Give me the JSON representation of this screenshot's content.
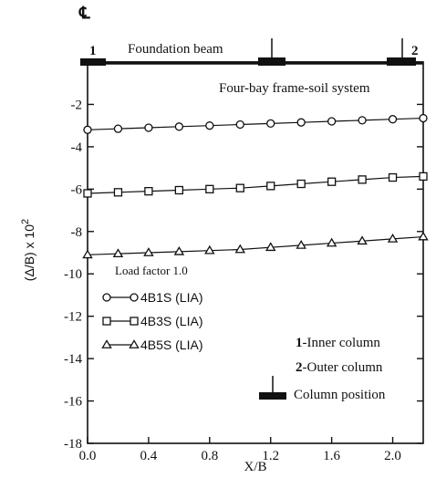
{
  "chart_data": {
    "type": "line",
    "xlabel": "X/B",
    "ylabel": "(Δ/B) x 10",
    "ylabel_sup": "2",
    "xlim": [
      0.0,
      2.2
    ],
    "ylim": [
      -18,
      0
    ],
    "x_ticks": [
      "0.0",
      "0.4",
      "0.8",
      "1.2",
      "1.6",
      "2.0"
    ],
    "x_tick_values": [
      0.0,
      0.4,
      0.8,
      1.2,
      1.6,
      2.0
    ],
    "y_ticks": [
      "-2",
      "-4",
      "-6",
      "-8",
      "-10",
      "-12",
      "-14",
      "-16",
      "-18"
    ],
    "y_tick_values": [
      -2,
      -4,
      -6,
      -8,
      -10,
      -12,
      -14,
      -16,
      -18
    ],
    "grid": false,
    "centerline_symbol": "℄",
    "x": [
      0.0,
      0.2,
      0.4,
      0.6,
      0.8,
      1.0,
      1.2,
      1.4,
      1.6,
      1.8,
      2.0,
      2.2
    ],
    "series": [
      {
        "name": "4B1S (LIA)",
        "marker": "circle",
        "values": [
          -3.2,
          -3.15,
          -3.1,
          -3.05,
          -3.0,
          -2.95,
          -2.9,
          -2.85,
          -2.8,
          -2.75,
          -2.7,
          -2.65
        ]
      },
      {
        "name": "4B3S (LIA)",
        "marker": "square",
        "values": [
          -6.2,
          -6.15,
          -6.1,
          -6.05,
          -6.0,
          -5.95,
          -5.85,
          -5.75,
          -5.65,
          -5.55,
          -5.45,
          -5.4
        ]
      },
      {
        "name": "4B5S (LIA)",
        "marker": "triangle",
        "values": [
          -9.1,
          -9.05,
          -9.0,
          -8.95,
          -8.9,
          -8.85,
          -8.75,
          -8.65,
          -8.55,
          -8.45,
          -8.35,
          -8.25
        ]
      }
    ],
    "legend_title": "Load factor 1.0",
    "legend_position": "lower-left",
    "annotations": {
      "foundation_label": "Foundation beam",
      "system_label": "Four-bay frame-soil system",
      "column_marker_1": "1",
      "column_marker_2": "2",
      "inner_column_num": "1",
      "inner_column_text": "-Inner column",
      "outer_column_num": "2",
      "outer_column_text": "-Outer column",
      "column_position_text": "Column position"
    }
  }
}
